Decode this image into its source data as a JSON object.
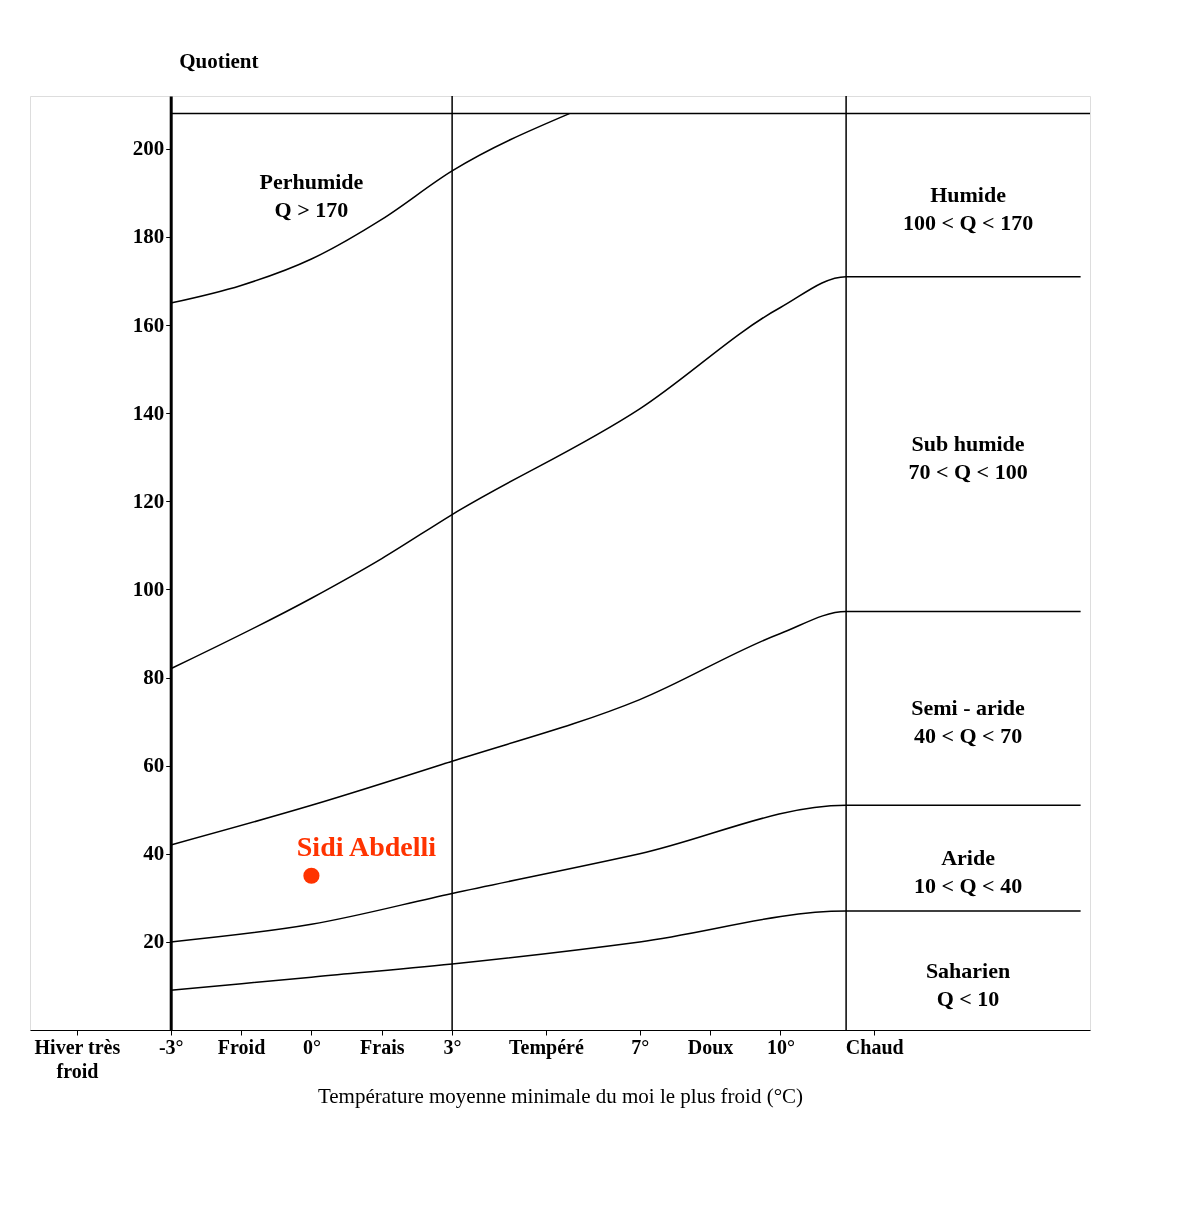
{
  "chart_data": {
    "type": "line",
    "xlabel": "Température moyenne minimale du moi le plus froid (°C)",
    "ylabel": "Quotient",
    "xlim": [
      -6,
      16.6
    ],
    "ylim": [
      0,
      212
    ],
    "xticks": [
      {
        "value": -5,
        "label": "Hiver très\nfroid"
      },
      {
        "value": -3,
        "label": "-3°"
      },
      {
        "value": -1.5,
        "label": "Froid"
      },
      {
        "value": 0,
        "label": "0°"
      },
      {
        "value": 1.5,
        "label": "Frais"
      },
      {
        "value": 3,
        "label": "3°"
      },
      {
        "value": 5,
        "label": "Tempéré"
      },
      {
        "value": 7,
        "label": "7°"
      },
      {
        "value": 8.5,
        "label": "Doux"
      },
      {
        "value": 10,
        "label": "10°"
      },
      {
        "value": 12,
        "label": "Chaud"
      }
    ],
    "yticks": [
      20,
      40,
      60,
      80,
      100,
      120,
      140,
      160,
      180,
      200
    ],
    "grid": false,
    "series": [
      {
        "type": "line",
        "color": "#000000",
        "x": [
          -3,
          -1.5,
          0,
          1.5,
          3,
          5.5
        ],
        "values": [
          165,
          169,
          175,
          184,
          195,
          208
        ]
      },
      {
        "type": "line",
        "color": "#000000",
        "x": [
          -3,
          0,
          1.5,
          3,
          7,
          10,
          11.4,
          16.4
        ],
        "values": [
          82,
          98,
          107,
          117,
          141,
          164,
          171,
          171
        ]
      },
      {
        "type": "line",
        "color": "#000000",
        "x": [
          -3,
          0,
          3,
          7,
          10,
          11.4,
          16.4
        ],
        "values": [
          42,
          51,
          61,
          75,
          90,
          95,
          95
        ]
      },
      {
        "type": "line",
        "color": "#000000",
        "x": [
          -3,
          0,
          3,
          7,
          11.4,
          16.4
        ],
        "values": [
          20,
          24,
          31,
          40,
          51,
          51
        ]
      },
      {
        "type": "line",
        "color": "#000000",
        "x": [
          -3,
          0,
          3,
          7,
          11.4,
          16.4
        ],
        "values": [
          9,
          12,
          15,
          20,
          27,
          27
        ]
      },
      {
        "type": "scatter",
        "name": "Sidi Abdelli",
        "color": "#ff3300",
        "marker": "circle",
        "x": [
          0
        ],
        "values": [
          35
        ]
      }
    ],
    "ref_lines": [
      {
        "axis": "x",
        "value": 3
      },
      {
        "axis": "x",
        "value": 11.4
      },
      {
        "axis": "y",
        "value": 208
      }
    ],
    "annotations": [
      "Perhumide\nQ > 170",
      "Humide\n100 < Q < 170",
      "Sub humide\n70 < Q < 100",
      "Semi - aride\n40 < Q < 70",
      "Aride\n10 < Q < 40",
      "Saharien\nQ < 10"
    ]
  }
}
